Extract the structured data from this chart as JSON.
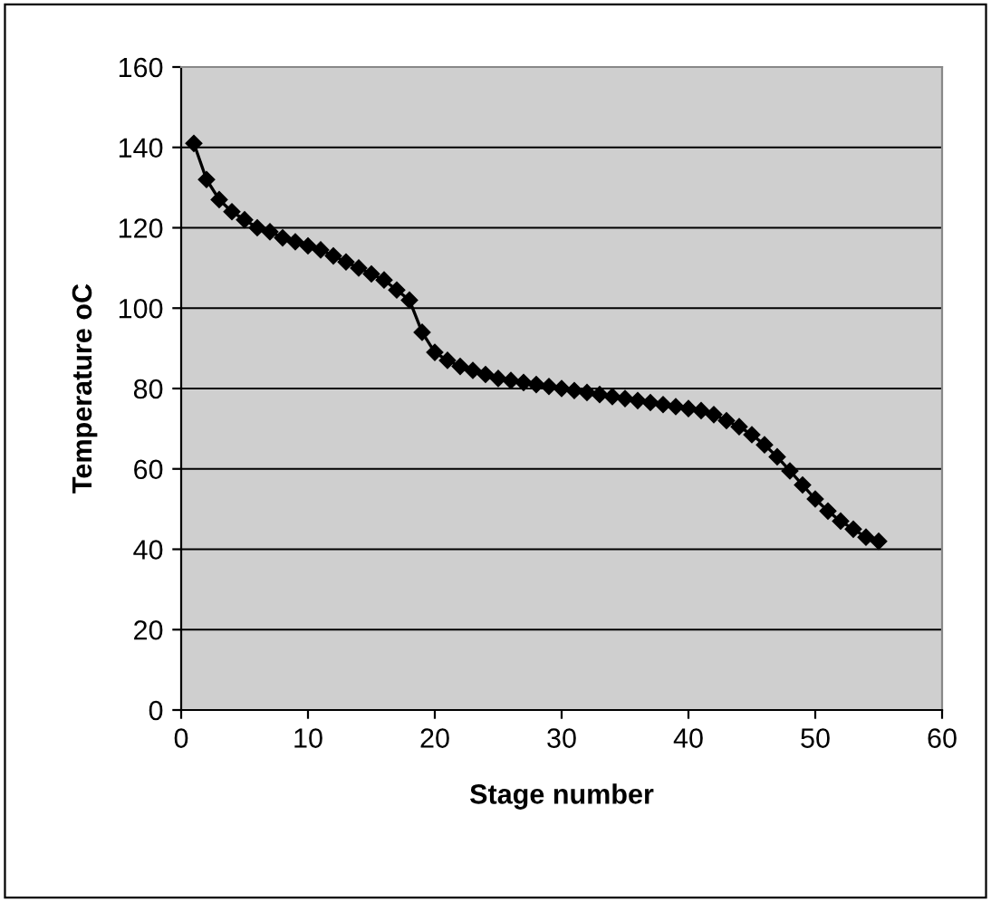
{
  "chart_data": {
    "type": "line",
    "xlabel": "Stage number",
    "ylabel": "Temperature oC",
    "x": [
      1,
      2,
      3,
      4,
      5,
      6,
      7,
      8,
      9,
      10,
      11,
      12,
      13,
      14,
      15,
      16,
      17,
      18,
      19,
      20,
      21,
      22,
      23,
      24,
      25,
      26,
      27,
      28,
      29,
      30,
      31,
      32,
      33,
      34,
      35,
      36,
      37,
      38,
      39,
      40,
      41,
      42,
      43,
      44,
      45,
      46,
      47,
      48,
      49,
      50,
      51,
      52,
      53,
      54,
      55
    ],
    "series": [
      {
        "color": "#000000",
        "values": [
          141,
          132,
          127,
          124,
          122,
          120,
          119,
          117.5,
          116.5,
          115.5,
          114.5,
          113,
          111.5,
          110,
          108.5,
          107,
          104.5,
          102,
          94,
          89,
          87,
          85.5,
          84.5,
          83.5,
          82.5,
          82,
          81.5,
          81,
          80.5,
          80,
          79.5,
          79,
          78.5,
          78,
          77.5,
          77,
          76.5,
          76,
          75.5,
          75,
          74.5,
          73.5,
          72,
          70.5,
          68.5,
          66,
          63,
          59.5,
          56,
          52.5,
          49.5,
          47,
          45,
          43,
          42
        ]
      }
    ],
    "xlim": [
      0,
      60
    ],
    "xticks": [
      0,
      10,
      20,
      30,
      40,
      50,
      60
    ],
    "ylim": [
      0,
      160
    ],
    "yticks": [
      0,
      20,
      40,
      60,
      80,
      100,
      120,
      140,
      160
    ],
    "grid": "y",
    "marker": "diamond",
    "line_style": "solid",
    "legend": false
  }
}
